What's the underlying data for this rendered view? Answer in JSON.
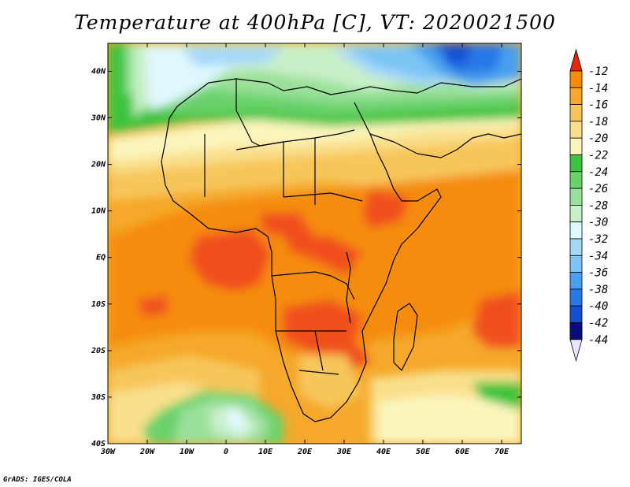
{
  "title": "Temperature at 400hPa [C], VT: 2020021500",
  "credit": "GrADS: IGES/COLA",
  "map": {
    "projection": "lat-lon",
    "lon_range": [
      -30,
      75
    ],
    "lat_range": [
      -40,
      46
    ],
    "x_ticks": [
      {
        "lon": -30,
        "label": "30W"
      },
      {
        "lon": -20,
        "label": "20W"
      },
      {
        "lon": -10,
        "label": "10W"
      },
      {
        "lon": 0,
        "label": "0"
      },
      {
        "lon": 10,
        "label": "10E"
      },
      {
        "lon": 20,
        "label": "20E"
      },
      {
        "lon": 30,
        "label": "30E"
      },
      {
        "lon": 40,
        "label": "40E"
      },
      {
        "lon": 50,
        "label": "50E"
      },
      {
        "lon": 60,
        "label": "60E"
      },
      {
        "lon": 70,
        "label": "70E"
      }
    ],
    "y_ticks": [
      {
        "lat": 40,
        "label": "40N"
      },
      {
        "lat": 30,
        "label": "30N"
      },
      {
        "lat": 20,
        "label": "20N"
      },
      {
        "lat": 10,
        "label": "10N"
      },
      {
        "lat": 0,
        "label": "EQ"
      },
      {
        "lat": -10,
        "label": "10S"
      },
      {
        "lat": -20,
        "label": "20S"
      },
      {
        "lat": -30,
        "label": "30S"
      },
      {
        "lat": -40,
        "label": "40S"
      }
    ]
  },
  "colorbar": {
    "labels": [
      "-12",
      "-14",
      "-16",
      "-18",
      "-20",
      "-22",
      "-24",
      "-26",
      "-28",
      "-30",
      "-32",
      "-34",
      "-36",
      "-38",
      "-40",
      "-42",
      "-44"
    ],
    "colors": [
      "#f0501e",
      "#f58c0a",
      "#f5a82a",
      "#f7c65a",
      "#f9df8c",
      "#fbf5bc",
      "#3ec43e",
      "#6ad26a",
      "#9ae09a",
      "#c8f0c8",
      "#e0f8ff",
      "#a8d8f8",
      "#7cc4f4",
      "#4aa0ee",
      "#2878e6",
      "#1450d2",
      "#0a2ab4"
    ],
    "max_arrow_color": "#e62800",
    "min_arrow_color": "#e6e6ff",
    "min_bottom_color": "#0a0a78"
  }
}
